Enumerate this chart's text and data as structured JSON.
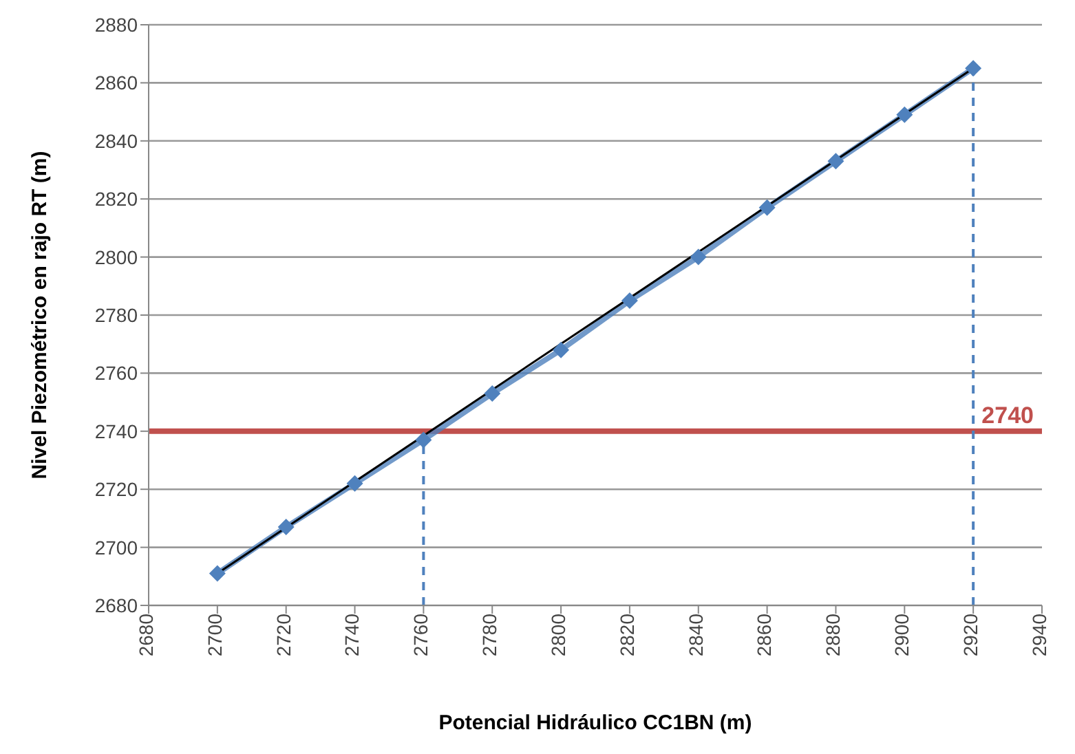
{
  "chart_data": {
    "type": "line",
    "xlabel": "Potencial Hidráulico CC1BN (m)",
    "ylabel": "Nivel Piezométrico en rajo RT (m)",
    "x": [
      2700,
      2720,
      2740,
      2760,
      2780,
      2800,
      2820,
      2840,
      2860,
      2880,
      2900,
      2920
    ],
    "series": [
      {
        "color": "#4f81bd",
        "marker": "diamond",
        "values": [
          2691,
          2707,
          2722,
          2737,
          2753,
          2768,
          2785,
          2800,
          2817,
          2833,
          2849,
          2865
        ]
      },
      {
        "type": "line",
        "color": "#000000",
        "marker": "none",
        "x": [
          2700,
          2920
        ],
        "values": [
          2691,
          2865
        ]
      }
    ],
    "xlim": [
      2680,
      2940
    ],
    "xticks": [
      2680,
      2700,
      2720,
      2740,
      2760,
      2780,
      2800,
      2820,
      2840,
      2860,
      2880,
      2900,
      2920,
      2940
    ],
    "ylim": [
      2680,
      2880
    ],
    "yticks": [
      2680,
      2700,
      2720,
      2740,
      2760,
      2780,
      2800,
      2820,
      2840,
      2860,
      2880
    ],
    "grid": "y",
    "ref_lines": [
      {
        "axis": "y",
        "value": 2740,
        "label": "2740",
        "color": "#c0504d"
      },
      {
        "axis": "x",
        "value": 2760,
        "color": "#4f81bd",
        "line_style": "dashed"
      },
      {
        "axis": "x",
        "value": 2920,
        "color": "#4f81bd",
        "line_style": "dashed"
      }
    ]
  }
}
